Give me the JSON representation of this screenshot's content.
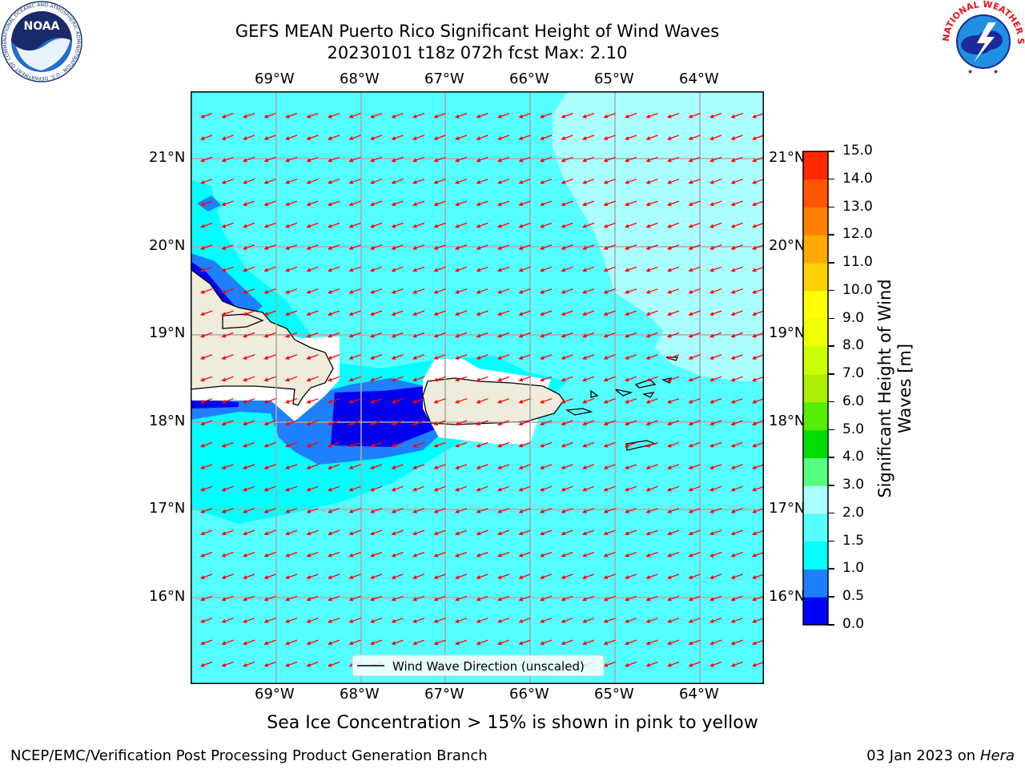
{
  "title": {
    "line1": "GEFS MEAN Puerto Rico Significant Height of Wind Waves",
    "line2": "20230101 t18z 072h fcst   Max: 2.10"
  },
  "map": {
    "lon_labels": [
      "69°W",
      "68°W",
      "67°W",
      "66°W",
      "65°W",
      "64°W"
    ],
    "lat_labels": [
      "21°N",
      "20°N",
      "19°N",
      "18°N",
      "17°N",
      "16°N"
    ],
    "legend_text": "Wind Wave Direction (unscaled)",
    "colors": {
      "land": "#efecdc",
      "arrow": "#ff0000",
      "ocean_main": "#55ffff",
      "ocean_light": "#aaffff",
      "ocean_cyan": "#00ffff",
      "ocean_mid_blue": "#1e7fff",
      "ocean_deep_blue": "#0000ee",
      "no_data": "#ffffff"
    }
  },
  "colorbar": {
    "label": "Significant Height of Wind Waves [m]",
    "ticks": [
      "0.0",
      "0.5",
      "1.0",
      "1.5",
      "2.0",
      "3.0",
      "4.0",
      "5.0",
      "6.0",
      "7.0",
      "8.0",
      "9.0",
      "10.0",
      "11.0",
      "12.0",
      "13.0",
      "14.0",
      "15.0"
    ],
    "colors": [
      "#0000ff",
      "#1e7fff",
      "#00ffff",
      "#55ffff",
      "#aaffff",
      "#55ff80",
      "#00dd00",
      "#55ee00",
      "#aaee00",
      "#ccff00",
      "#eeff00",
      "#ffff00",
      "#ffd000",
      "#ffaa00",
      "#ff8000",
      "#ff5500",
      "#ff2a00"
    ]
  },
  "logos": {
    "noaa_text": "NOAA",
    "noaa_ring": "NATIONAL OCEANIC AND ATMOSPHERIC ADMINISTRATION · U.S. DEPARTMENT OF COMMERCE",
    "nws_ring": "NATIONAL WEATHER SERVICE"
  },
  "note": "Sea Ice Concentration > 15% is shown in pink to yellow",
  "footer": {
    "left": "NCEP/EMC/Verification Post Processing Product Generation Branch",
    "right_date": "03 Jan 2023 on",
    "right_host": "Hera"
  }
}
